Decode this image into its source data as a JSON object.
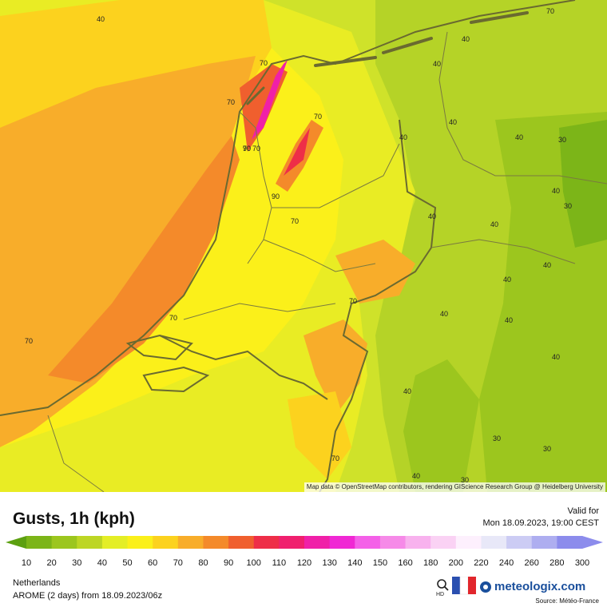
{
  "map": {
    "attribution": "Map data © OpenStreetMap contributors, rendering GIScience Research Group @ Heidelberg University",
    "contour_labels": [
      "40",
      "70",
      "70",
      "70",
      "70",
      "90",
      "70",
      "90",
      "70",
      "70",
      "70",
      "70",
      "40",
      "40",
      "40",
      "40",
      "40",
      "30",
      "40",
      "30",
      "40",
      "40",
      "40",
      "40",
      "40",
      "40",
      "40",
      "40",
      "30",
      "30",
      "40",
      "30",
      "70",
      "70"
    ]
  },
  "legend": {
    "title": "Gusts, 1h (kph)",
    "valid_label": "Valid for",
    "valid_time": "Mon 18.09.2023, 19:00 CEST",
    "scale_values": [
      "10",
      "20",
      "30",
      "40",
      "50",
      "60",
      "70",
      "80",
      "90",
      "100",
      "110",
      "120",
      "130",
      "140",
      "150",
      "160",
      "180",
      "200",
      "220",
      "240",
      "260",
      "280",
      "300"
    ],
    "scale_colors": [
      "#5ca010",
      "#7cb518",
      "#9cc61e",
      "#bdd624",
      "#e4ee26",
      "#fbf01a",
      "#fcd21e",
      "#f8ad2a",
      "#f48a2a",
      "#f05f2e",
      "#ee2e48",
      "#f0206e",
      "#f020a8",
      "#f028d4",
      "#f460e8",
      "#f68ae8",
      "#f8b2ee",
      "#fad2f4",
      "#fdf0fd",
      "#e8e8f8",
      "#ccccf4",
      "#aeaef0",
      "#8c8cec"
    ],
    "region": "Netherlands",
    "model": "AROME (2 days)  from  18.09.2023/06z",
    "source": "Source: Météo-France",
    "brand": "meteologix.com",
    "hd_label": "HD"
  }
}
